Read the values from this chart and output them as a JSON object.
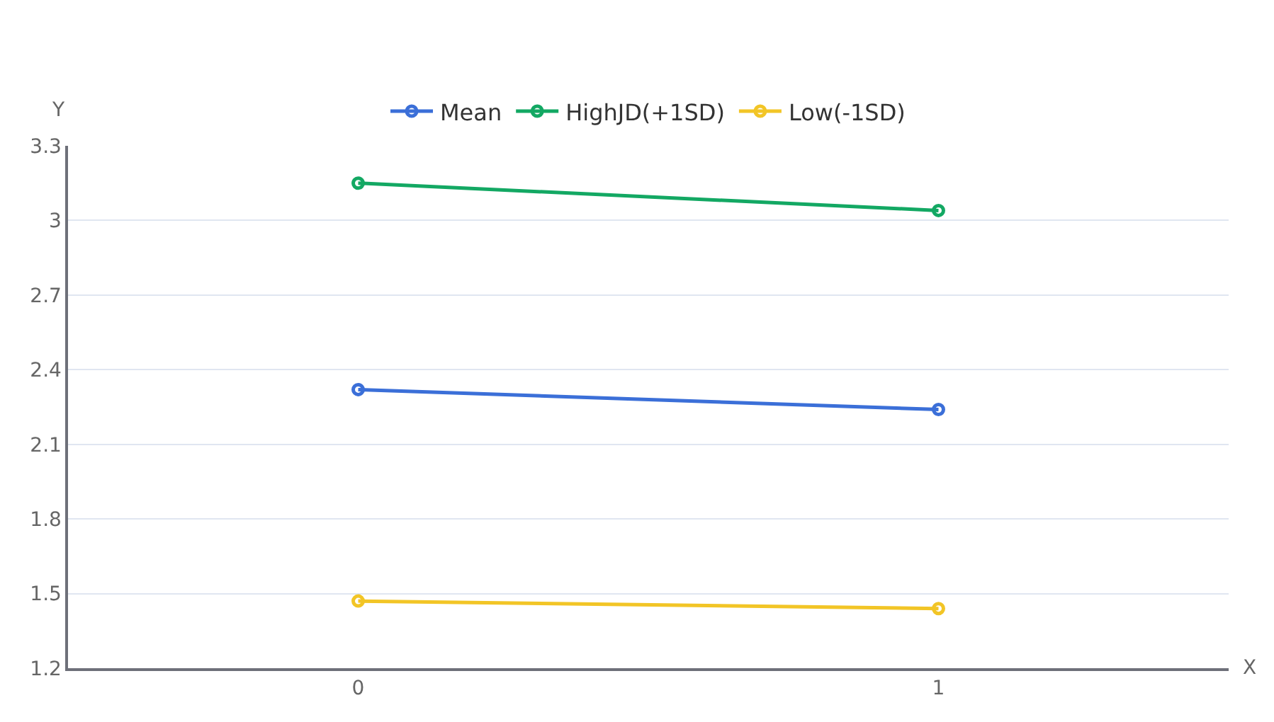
{
  "chart_data": {
    "type": "line",
    "xlabel": "X",
    "ylabel": "Y",
    "categories": [
      "0",
      "1"
    ],
    "series": [
      {
        "name": "Mean",
        "color": "#3b6fd8",
        "values": [
          2.32,
          2.24
        ]
      },
      {
        "name": "HighJD(+1SD)",
        "color": "#13a863",
        "values": [
          3.15,
          3.04
        ]
      },
      {
        "name": "Low(-1SD)",
        "color": "#f2c526",
        "values": [
          1.47,
          1.44
        ]
      }
    ],
    "ylim": [
      1.2,
      3.3
    ],
    "yticks": [
      1.2,
      1.5,
      1.8,
      2.1,
      2.4,
      2.7,
      3,
      3.3
    ],
    "grid": "y",
    "legend": "top",
    "marker": "circle",
    "line_style": "solid"
  }
}
